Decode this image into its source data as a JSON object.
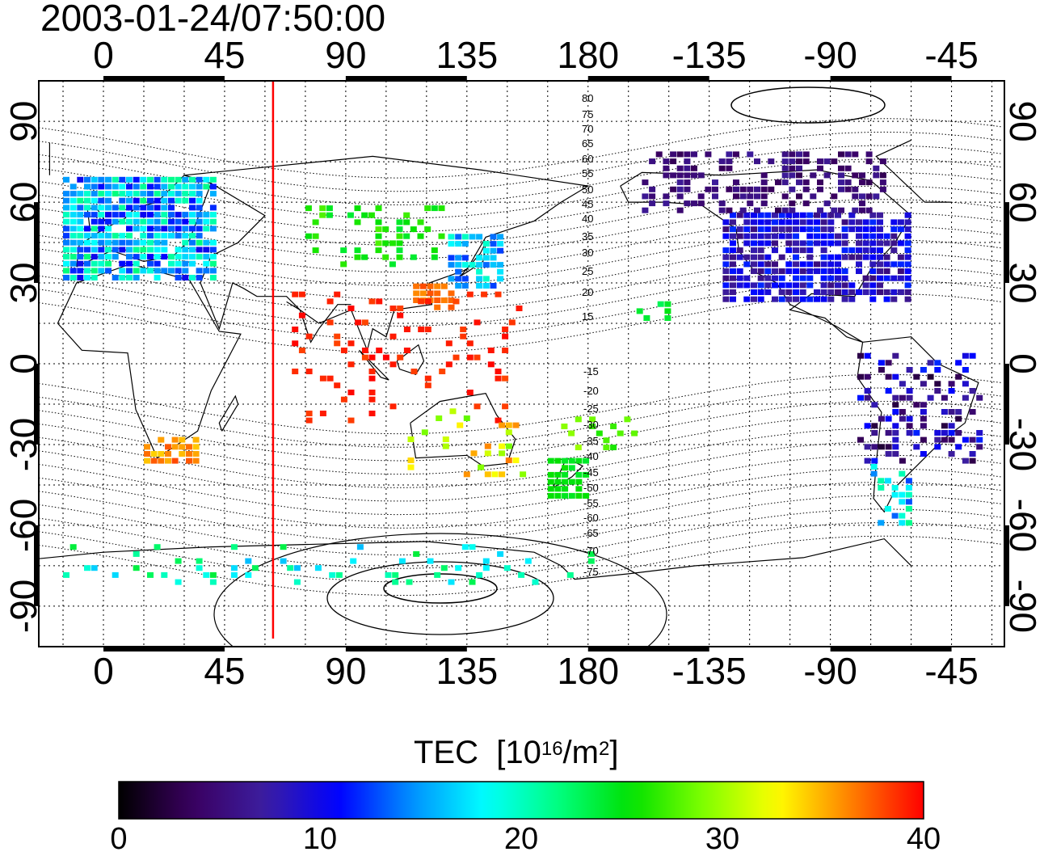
{
  "timestamp": "2003-01-24/07:50:00",
  "map": {
    "projection": "longitude-centered at 90E, equirectangular",
    "top_lon_ticks": [
      "0",
      "45",
      "90",
      "135",
      "180",
      "-135",
      "-90",
      "-45"
    ],
    "bottom_lon_ticks": [
      "0",
      "45",
      "90",
      "135",
      "180",
      "-135",
      "-90",
      "-45"
    ],
    "left_lat_ticks": [
      "90",
      "60",
      "30",
      "0",
      "-30",
      "-60",
      "-90"
    ],
    "right_lat_ticks": [
      "90",
      "60",
      "30",
      "0",
      "-30",
      "-60",
      "-90"
    ],
    "grid": true,
    "terminator_longitude": 63,
    "terminator_color": "#ff0000",
    "north_contours": [
      "80",
      "75",
      "70",
      "65",
      "60",
      "55",
      "50",
      "45",
      "40",
      "35",
      "30",
      "25",
      "20",
      "15"
    ],
    "south_contours": [
      "-15",
      "-20",
      "-25",
      "-30",
      "-35",
      "-40",
      "-45",
      "-50",
      "-55",
      "-60",
      "-65",
      "-70",
      "-75"
    ]
  },
  "colorbar": {
    "title": "TEC",
    "unit_prefix": "[10",
    "unit_exp": "16",
    "unit_mid": "/m",
    "unit_exp2": "2",
    "unit_suffix": "]",
    "min": 0,
    "max": 40,
    "ticks": [
      "0",
      "10",
      "20",
      "30",
      "40"
    ],
    "colors": [
      "#000000",
      "#3a0060",
      "#3c1ea0",
      "#0000ff",
      "#0090ff",
      "#00ffff",
      "#00ff80",
      "#00e000",
      "#80ff00",
      "#ffff00",
      "#ff8000",
      "#ff0000"
    ]
  },
  "regions": [
    {
      "name": "europe",
      "lon0": -15,
      "lon1": 40,
      "lat0": 33,
      "lat1": 72,
      "tec0": 10,
      "tec1": 22,
      "density": 0.9
    },
    {
      "name": "russia",
      "lon0": 75,
      "lon1": 125,
      "lat0": 38,
      "lat1": 60,
      "tec0": 24,
      "tec1": 28,
      "density": 0.25
    },
    {
      "name": "japan",
      "lon0": 128,
      "lon1": 147,
      "lat0": 30,
      "lat1": 50,
      "tec0": 12,
      "tec1": 20,
      "density": 0.7
    },
    {
      "name": "china-south",
      "lon0": 115,
      "lon1": 130,
      "lat0": 22,
      "lat1": 32,
      "tec0": 36,
      "tec1": 38,
      "density": 0.7
    },
    {
      "name": "india-sea",
      "lon0": 70,
      "lon1": 155,
      "lat0": -20,
      "lat1": 28,
      "tec0": 38,
      "tec1": 40,
      "density": 0.12
    },
    {
      "name": "s-africa",
      "lon0": 15,
      "lon1": 35,
      "lat0": -35,
      "lat1": -25,
      "tec0": 34,
      "tec1": 38,
      "density": 0.7
    },
    {
      "name": "australia",
      "lon0": 113,
      "lon1": 155,
      "lat0": -40,
      "lat1": -15,
      "tec0": 28,
      "tec1": 38,
      "density": 0.18
    },
    {
      "name": "nz",
      "lon0": 165,
      "lon1": 180,
      "lat0": -48,
      "lat1": -33,
      "tec0": 24,
      "tec1": 26,
      "density": 0.6
    },
    {
      "name": "pacific",
      "lon0": 170,
      "lon1": 200,
      "lat0": -30,
      "lat1": -18,
      "tec0": 26,
      "tec1": 30,
      "density": 0.3
    },
    {
      "name": "hawaii",
      "lon0": 198,
      "lon1": 210,
      "lat0": 18,
      "lat1": 24,
      "tec0": 23,
      "tec1": 25,
      "density": 0.6
    },
    {
      "name": "north-america",
      "lon0": -130,
      "lon1": -60,
      "lat0": 25,
      "lat1": 58,
      "tec0": 5,
      "tec1": 12,
      "density": 0.85
    },
    {
      "name": "canada-north",
      "lon0": -160,
      "lon1": -70,
      "lat0": 58,
      "lat1": 80,
      "tec0": 3,
      "tec1": 7,
      "density": 0.45
    },
    {
      "name": "south-america",
      "lon0": -80,
      "lon1": -35,
      "lat0": -35,
      "lat1": 5,
      "tec0": 2,
      "tec1": 12,
      "density": 0.35
    },
    {
      "name": "patagonia",
      "lon0": -75,
      "lon1": -60,
      "lat0": -58,
      "lat1": -35,
      "tec0": 12,
      "tec1": 22,
      "density": 0.4
    },
    {
      "name": "antarctic",
      "lon0": -15,
      "lon1": 180,
      "lat0": -80,
      "lat1": -66,
      "tec0": 16,
      "tec1": 24,
      "density": 0.12
    }
  ]
}
